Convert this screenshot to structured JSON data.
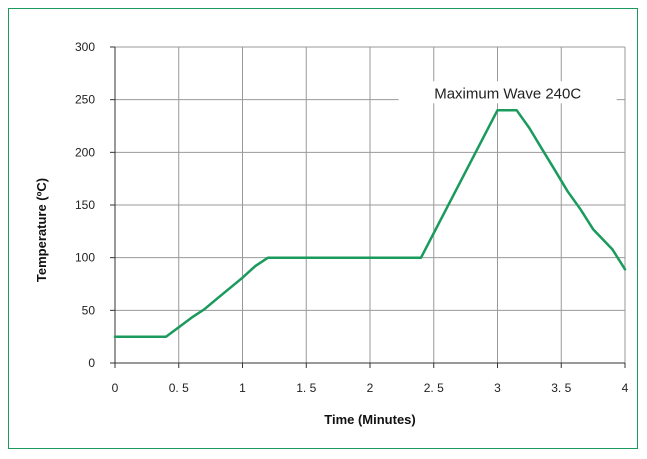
{
  "chart_data": {
    "type": "line",
    "title": "",
    "xlabel": "Time (Minutes)",
    "ylabel": "Temperature (ºC)",
    "xlim": [
      0,
      4
    ],
    "ylim": [
      0,
      300
    ],
    "x_ticks": [
      0,
      0.5,
      1,
      1.5,
      2,
      2.5,
      3,
      3.5,
      4
    ],
    "x_tick_labels": [
      "0",
      "0. 5",
      "1",
      "1. 5",
      "2",
      "2. 5",
      "3",
      "3. 5",
      "4"
    ],
    "y_ticks": [
      0,
      50,
      100,
      150,
      200,
      250,
      300
    ],
    "y_tick_labels": [
      "0",
      "50",
      "100",
      "150",
      "200",
      "250",
      "300"
    ],
    "grid": true,
    "line_color": "#1a9a5c",
    "grid_color": "#999999",
    "series": [
      {
        "x": [
          0,
          0.4,
          0.5,
          0.6,
          0.7,
          0.8,
          0.9,
          1.0,
          1.1,
          1.2,
          2.4,
          3.0,
          3.15,
          3.25,
          3.35,
          3.45,
          3.55,
          3.65,
          3.75,
          3.9,
          4.0
        ],
        "values": [
          25,
          25,
          34,
          43,
          51,
          61,
          71,
          81,
          92,
          100,
          100,
          240,
          240,
          223,
          203,
          183,
          163,
          146,
          127,
          108,
          89
        ]
      }
    ],
    "annotation": {
      "text": "Maximum Wave 240C",
      "x": 3.08,
      "y": 257
    }
  }
}
